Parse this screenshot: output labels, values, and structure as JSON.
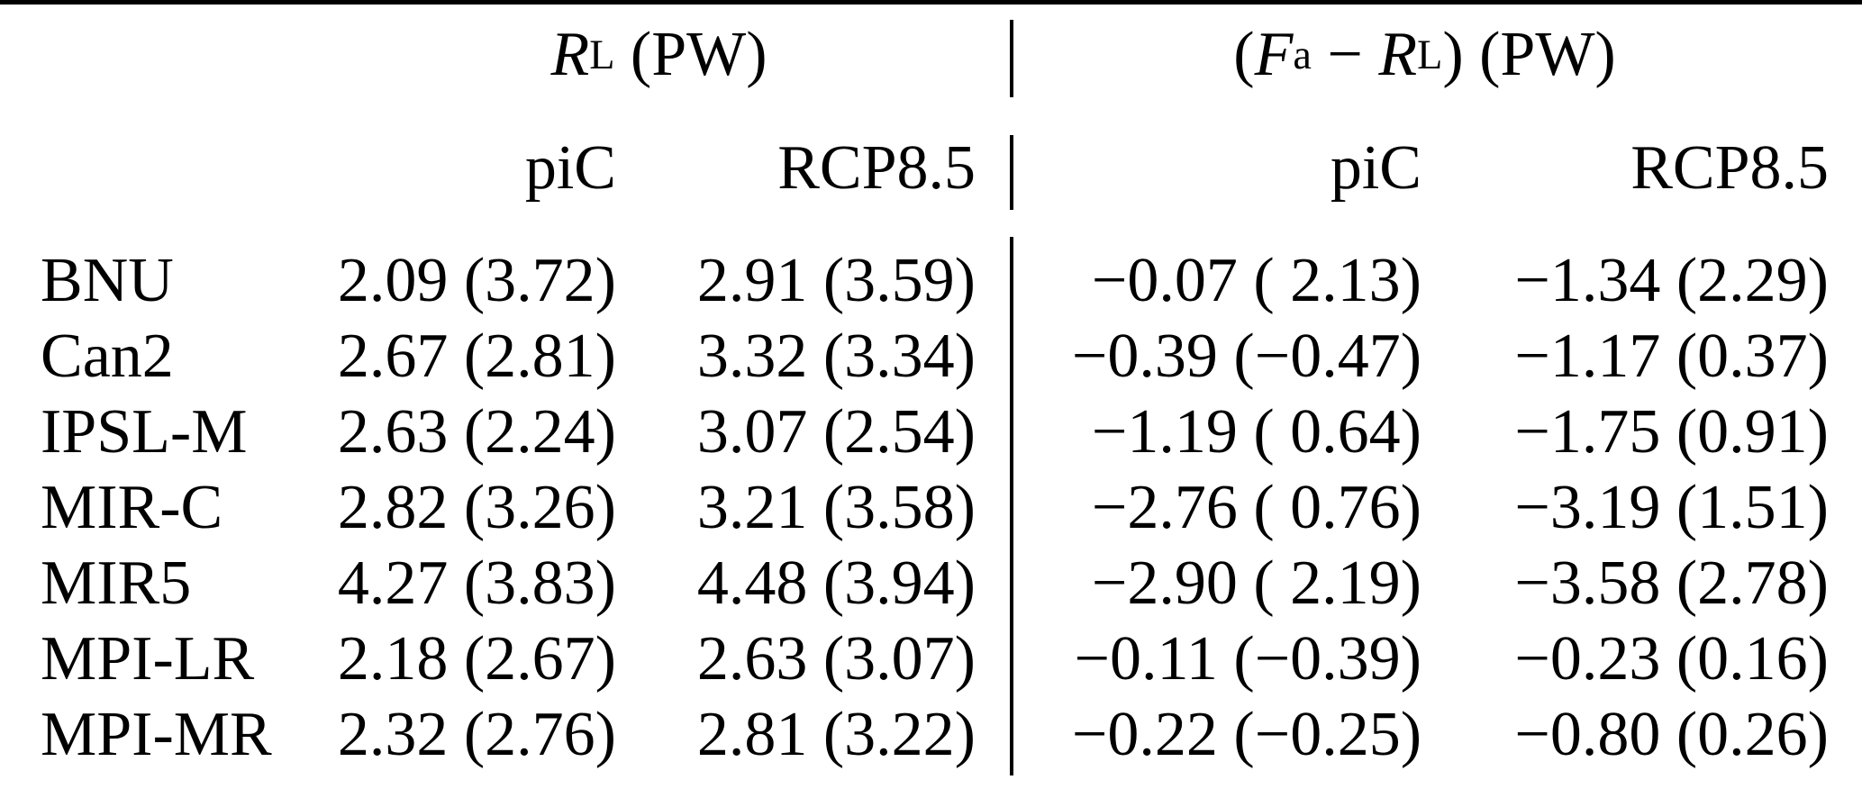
{
  "page": {
    "background_color": "#ffffff",
    "text_color": "#000000"
  },
  "table": {
    "column_groups": [
      {
        "name": "RL (PW)",
        "title_runs": [
          {
            "text": "R",
            "style": "italic"
          },
          {
            "text": "L",
            "style": "subscript"
          },
          {
            "text": " (PW)",
            "style": "normal"
          }
        ],
        "subcolumns": [
          "piC",
          "RCP8.5"
        ]
      },
      {
        "name": "(Fa − RL) (PW)",
        "title_runs": [
          {
            "text": "(",
            "style": "normal"
          },
          {
            "text": "F",
            "style": "italic"
          },
          {
            "text": "a",
            "style": "subscript"
          },
          {
            "text": " − ",
            "style": "normal"
          },
          {
            "text": "R",
            "style": "italic"
          },
          {
            "text": "L",
            "style": "subscript"
          },
          {
            "text": ") (PW)",
            "style": "normal"
          }
        ],
        "subcolumns": [
          "piC",
          "RCP8.5"
        ]
      }
    ],
    "rows": [
      {
        "model": "BNU",
        "rl_pic": "2.09 (3.72)",
        "rl_rcp85": "2.91 (3.59)",
        "farl_pic": "−0.07 ( 2.13)",
        "farl_rcp85": "−1.34 (2.29)"
      },
      {
        "model": "Can2",
        "rl_pic": "2.67 (2.81)",
        "rl_rcp85": "3.32 (3.34)",
        "farl_pic": "−0.39 (−0.47)",
        "farl_rcp85": "−1.17 (0.37)"
      },
      {
        "model": "IPSL-M",
        "rl_pic": "2.63 (2.24)",
        "rl_rcp85": "3.07 (2.54)",
        "farl_pic": "−1.19 ( 0.64)",
        "farl_rcp85": "−1.75 (0.91)"
      },
      {
        "model": "MIR-C",
        "rl_pic": "2.82 (3.26)",
        "rl_rcp85": "3.21 (3.58)",
        "farl_pic": "−2.76 ( 0.76)",
        "farl_rcp85": "−3.19 (1.51)"
      },
      {
        "model": "MIR5",
        "rl_pic": "4.27 (3.83)",
        "rl_rcp85": "4.48 (3.94)",
        "farl_pic": "−2.90 ( 2.19)",
        "farl_rcp85": "−3.58 (2.78)"
      },
      {
        "model": "MPI-LR",
        "rl_pic": "2.18 (2.67)",
        "rl_rcp85": "2.63 (3.07)",
        "farl_pic": "−0.11 (−0.39)",
        "farl_rcp85": "−0.23 (0.16)"
      },
      {
        "model": "MPI-MR",
        "rl_pic": "2.32 (2.76)",
        "rl_rcp85": "2.81 (3.22)",
        "farl_pic": "−0.22 (−0.25)",
        "farl_rcp85": "−0.80 (0.26)"
      }
    ]
  },
  "chart_data": {
    "type": "table",
    "column_group_titles": [
      "RL (PW)",
      "(Fa − RL) (PW)"
    ],
    "columns": [
      "model",
      "RL (PW) piC",
      "RL (PW) RCP8.5",
      "(Fa − RL) (PW) piC",
      "(Fa − RL) (PW) RCP8.5"
    ],
    "rows": [
      [
        "BNU",
        "2.09 (3.72)",
        "2.91 (3.59)",
        "−0.07 ( 2.13)",
        "−1.34 (2.29)"
      ],
      [
        "Can2",
        "2.67 (2.81)",
        "3.32 (3.34)",
        "−0.39 (−0.47)",
        "−1.17 (0.37)"
      ],
      [
        "IPSL-M",
        "2.63 (2.24)",
        "3.07 (2.54)",
        "−1.19 ( 0.64)",
        "−1.75 (0.91)"
      ],
      [
        "MIR-C",
        "2.82 (3.26)",
        "3.21 (3.58)",
        "−2.76 ( 0.76)",
        "−3.19 (1.51)"
      ],
      [
        "MIR5",
        "4.27 (3.83)",
        "4.48 (3.94)",
        "−2.90 ( 2.19)",
        "−3.58 (2.78)"
      ],
      [
        "MPI-LR",
        "2.18 (2.67)",
        "2.63 (3.07)",
        "−0.11 (−0.39)",
        "−0.23 (0.16)"
      ],
      [
        "MPI-MR",
        "2.32 (2.76)",
        "2.81 (3.22)",
        "−0.22 (−0.25)",
        "−0.80 (0.26)"
      ]
    ]
  }
}
